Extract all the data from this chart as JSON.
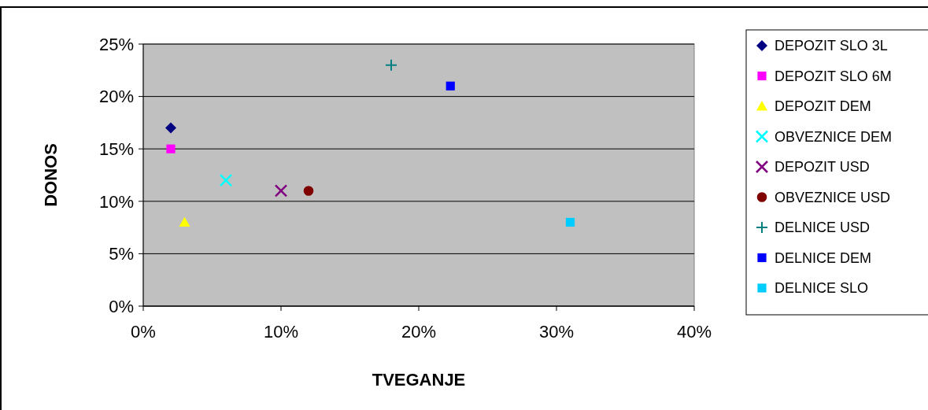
{
  "chart_data": {
    "type": "scatter",
    "xlabel": "TVEGANJE",
    "ylabel": "DONOS",
    "xlim": [
      0,
      40
    ],
    "ylim": [
      0,
      25
    ],
    "xticks": [
      {
        "value": 0,
        "label": "0%"
      },
      {
        "value": 10,
        "label": "10%"
      },
      {
        "value": 20,
        "label": "20%"
      },
      {
        "value": 30,
        "label": "30%"
      },
      {
        "value": 40,
        "label": "40%"
      }
    ],
    "yticks": [
      {
        "value": 0,
        "label": "0%"
      },
      {
        "value": 5,
        "label": "5%"
      },
      {
        "value": 10,
        "label": "10%"
      },
      {
        "value": 15,
        "label": "15%"
      },
      {
        "value": 20,
        "label": "20%"
      },
      {
        "value": 25,
        "label": "25%"
      }
    ],
    "grid": "y",
    "legend": "right",
    "series": [
      {
        "name": "DEPOZIT SLO 3L",
        "color": "#000080",
        "marker": "diamond",
        "x": [
          2
        ],
        "values": [
          17
        ]
      },
      {
        "name": "DEPOZIT SLO 6M",
        "color": "#ff00ff",
        "marker": "square",
        "x": [
          2
        ],
        "values": [
          15
        ]
      },
      {
        "name": "DEPOZIT DEM",
        "color": "#ffff00",
        "marker": "triangle",
        "x": [
          3
        ],
        "values": [
          8
        ]
      },
      {
        "name": "OBVEZNICE DEM",
        "color": "#00ffff",
        "marker": "cross",
        "x": [
          6
        ],
        "values": [
          12
        ]
      },
      {
        "name": "DEPOZIT USD",
        "color": "#800080",
        "marker": "cross",
        "x": [
          10
        ],
        "values": [
          11
        ]
      },
      {
        "name": "OBVEZNICE USD",
        "color": "#800000",
        "marker": "circle",
        "x": [
          12
        ],
        "values": [
          11
        ]
      },
      {
        "name": "DELNICE USD",
        "color": "#008080",
        "marker": "plus",
        "x": [
          18
        ],
        "values": [
          23
        ]
      },
      {
        "name": "DELNICE DEM",
        "color": "#0000ff",
        "marker": "square",
        "x": [
          22.3
        ],
        "values": [
          21
        ]
      },
      {
        "name": "DELNICE SLO",
        "color": "#00ccff",
        "marker": "square",
        "x": [
          31
        ],
        "values": [
          8
        ]
      }
    ]
  }
}
